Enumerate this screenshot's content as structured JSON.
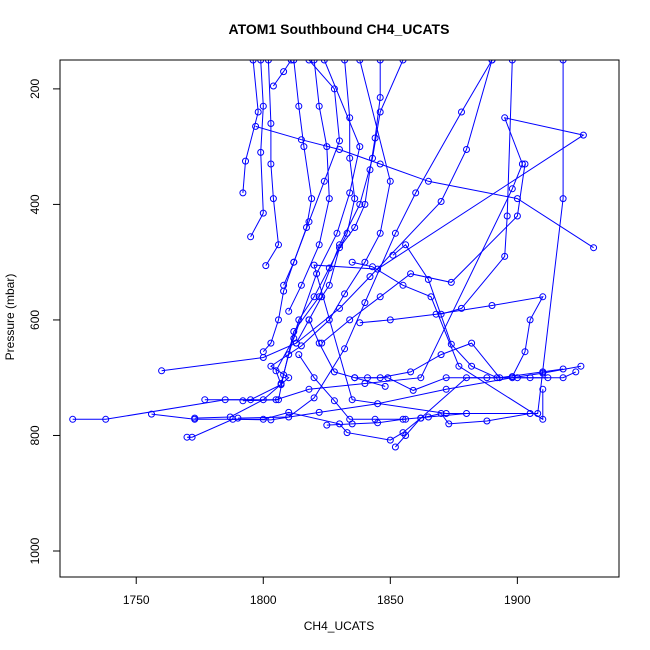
{
  "chart_data": {
    "type": "line",
    "title": "ATOM1 Southbound CH4_UCATS",
    "xlabel": "CH4_UCATS",
    "ylabel": "Pressure (mbar)",
    "xlim": [
      1720,
      1940
    ],
    "ylim": [
      1045,
      150
    ],
    "x_ticks": [
      1750,
      1800,
      1850,
      1900
    ],
    "y_ticks": [
      200,
      400,
      600,
      800,
      1000
    ],
    "grid": false,
    "legend": "none",
    "color": "#0000ff",
    "series": [
      {
        "points": [
          [
            1725,
            772
          ],
          [
            1738,
            772
          ],
          [
            1785,
            738
          ],
          [
            1805,
            738
          ],
          [
            1818,
            720
          ],
          [
            1840,
            710
          ],
          [
            1862,
            700
          ],
          [
            1898,
            373
          ],
          [
            1902,
            330
          ],
          [
            1895,
            250
          ],
          [
            1926,
            280
          ],
          [
            1845,
            512
          ],
          [
            1820,
            505
          ],
          [
            1835,
            738
          ],
          [
            1872,
            762
          ],
          [
            1908,
            762
          ],
          [
            1918,
            390
          ],
          [
            1918,
            150
          ]
        ]
      },
      {
        "points": [
          [
            1756,
            763
          ],
          [
            1773,
            772
          ],
          [
            1800,
            772
          ],
          [
            1810,
            760
          ],
          [
            1830,
            780
          ],
          [
            1833,
            795
          ],
          [
            1850,
            808
          ],
          [
            1855,
            795
          ],
          [
            1862,
            770
          ],
          [
            1880,
            700
          ],
          [
            1900,
            700
          ],
          [
            1918,
            700
          ],
          [
            1923,
            690
          ]
        ]
      },
      {
        "points": [
          [
            1770,
            803
          ],
          [
            1772,
            803
          ],
          [
            1788,
            772
          ],
          [
            1803,
            773
          ],
          [
            1822,
            760
          ],
          [
            1845,
            745
          ],
          [
            1872,
            720
          ],
          [
            1898,
            700
          ],
          [
            1910,
            692
          ],
          [
            1925,
            680
          ]
        ]
      },
      {
        "points": [
          [
            1760,
            688
          ],
          [
            1800,
            665
          ],
          [
            1813,
            640
          ],
          [
            1830,
            580
          ],
          [
            1842,
            525
          ],
          [
            1870,
            395
          ],
          [
            1880,
            305
          ],
          [
            1890,
            150
          ]
        ]
      },
      {
        "points": [
          [
            1773,
            770
          ],
          [
            1787,
            768
          ],
          [
            1800,
            738
          ],
          [
            1810,
            700
          ],
          [
            1803,
            680
          ],
          [
            1815,
            645
          ],
          [
            1826,
            600
          ],
          [
            1832,
            555
          ],
          [
            1840,
            500
          ],
          [
            1846,
            450
          ],
          [
            1850,
            360
          ],
          [
            1838,
            150
          ]
        ]
      },
      {
        "points": [
          [
            1777,
            738
          ],
          [
            1795,
            738
          ],
          [
            1807,
            712
          ],
          [
            1805,
            688
          ],
          [
            1812,
            632
          ],
          [
            1821,
            520
          ],
          [
            1829,
            450
          ],
          [
            1834,
            380
          ],
          [
            1838,
            300
          ],
          [
            1824,
            150
          ]
        ]
      },
      {
        "points": [
          [
            1790,
            770
          ],
          [
            1810,
            768
          ],
          [
            1820,
            735
          ],
          [
            1832,
            650
          ],
          [
            1840,
            570
          ],
          [
            1852,
            450
          ],
          [
            1860,
            380
          ],
          [
            1878,
            240
          ],
          [
            1890,
            150
          ]
        ]
      },
      {
        "points": [
          [
            1792,
            740
          ],
          [
            1806,
            738
          ],
          [
            1808,
            695
          ],
          [
            1812,
            620
          ],
          [
            1822,
            560
          ],
          [
            1830,
            470
          ],
          [
            1838,
            400
          ],
          [
            1843,
            320
          ],
          [
            1846,
            240
          ],
          [
            1855,
            150
          ]
        ]
      },
      {
        "points": [
          [
            1800,
            655
          ],
          [
            1803,
            640
          ],
          [
            1806,
            600
          ],
          [
            1808,
            550
          ],
          [
            1812,
            500
          ],
          [
            1818,
            430
          ],
          [
            1824,
            360
          ],
          [
            1830,
            290
          ],
          [
            1828,
            200
          ],
          [
            1818,
            150
          ]
        ]
      },
      {
        "points": [
          [
            1801,
            506
          ],
          [
            1806,
            470
          ],
          [
            1804,
            390
          ],
          [
            1803,
            330
          ],
          [
            1803,
            260
          ],
          [
            1802,
            150
          ]
        ]
      },
      {
        "points": [
          [
            1797,
            265
          ],
          [
            1815,
            288
          ],
          [
            1830,
            305
          ],
          [
            1846,
            330
          ],
          [
            1865,
            360
          ],
          [
            1900,
            390
          ],
          [
            1930,
            475
          ]
        ]
      },
      {
        "points": [
          [
            1795,
            456
          ],
          [
            1800,
            415
          ],
          [
            1799,
            310
          ],
          [
            1800,
            230
          ],
          [
            1799,
            150
          ]
        ]
      },
      {
        "points": [
          [
            1792,
            380
          ],
          [
            1793,
            325
          ],
          [
            1798,
            240
          ],
          [
            1796,
            150
          ]
        ]
      },
      {
        "points": [
          [
            1808,
            540
          ],
          [
            1812,
            500
          ],
          [
            1817,
            440
          ],
          [
            1819,
            390
          ],
          [
            1816,
            300
          ],
          [
            1814,
            230
          ],
          [
            1812,
            150
          ]
        ]
      },
      {
        "points": [
          [
            1810,
            585
          ],
          [
            1815,
            540
          ],
          [
            1822,
            470
          ],
          [
            1826,
            390
          ],
          [
            1825,
            300
          ],
          [
            1822,
            230
          ],
          [
            1820,
            150
          ]
        ]
      },
      {
        "points": [
          [
            1807,
            710
          ],
          [
            1810,
            660
          ],
          [
            1814,
            600
          ],
          [
            1820,
            560
          ],
          [
            1826,
            510
          ],
          [
            1833,
            450
          ],
          [
            1836,
            390
          ],
          [
            1834,
            320
          ],
          [
            1834,
            250
          ],
          [
            1832,
            150
          ]
        ]
      },
      {
        "points": [
          [
            1813,
            640
          ],
          [
            1818,
            600
          ],
          [
            1823,
            560
          ],
          [
            1826,
            540
          ],
          [
            1830,
            475
          ],
          [
            1836,
            440
          ],
          [
            1840,
            400
          ],
          [
            1842,
            340
          ],
          [
            1844,
            285
          ],
          [
            1846,
            215
          ],
          [
            1846,
            150
          ]
        ]
      },
      {
        "points": [
          [
            1804,
            195
          ],
          [
            1808,
            170
          ],
          [
            1811,
            150
          ]
        ]
      },
      {
        "points": [
          [
            1823,
            640
          ],
          [
            1834,
            600
          ],
          [
            1846,
            560
          ],
          [
            1858,
            520
          ],
          [
            1874,
            535
          ],
          [
            1900,
            420
          ],
          [
            1903,
            330
          ]
        ]
      },
      {
        "points": [
          [
            1870,
            590
          ],
          [
            1878,
            580
          ],
          [
            1895,
            490
          ],
          [
            1896,
            420
          ],
          [
            1898,
            150
          ]
        ]
      },
      {
        "points": [
          [
            1838,
            605
          ],
          [
            1850,
            600
          ],
          [
            1868,
            590
          ],
          [
            1890,
            575
          ],
          [
            1910,
            560
          ],
          [
            1905,
            600
          ],
          [
            1903,
            655
          ],
          [
            1898,
            698
          ]
        ]
      },
      {
        "points": [
          [
            1836,
            700
          ],
          [
            1846,
            700
          ],
          [
            1858,
            690
          ],
          [
            1870,
            660
          ],
          [
            1882,
            640
          ],
          [
            1893,
            700
          ],
          [
            1910,
            690
          ],
          [
            1918,
            685
          ]
        ]
      },
      {
        "points": [
          [
            1841,
            700
          ],
          [
            1849,
            700
          ],
          [
            1859,
            722
          ],
          [
            1872,
            700
          ],
          [
            1888,
            700
          ],
          [
            1905,
            700
          ],
          [
            1912,
            700
          ]
        ]
      },
      {
        "points": [
          [
            1835,
            500
          ],
          [
            1843,
            508
          ],
          [
            1855,
            540
          ],
          [
            1866,
            560
          ],
          [
            1877,
            680
          ],
          [
            1910,
            772
          ],
          [
            1910,
            720
          ]
        ]
      },
      {
        "points": [
          [
            1851,
            488
          ],
          [
            1856,
            470
          ],
          [
            1865,
            530
          ],
          [
            1874,
            642
          ],
          [
            1882,
            680
          ],
          [
            1892,
            700
          ]
        ]
      },
      {
        "points": [
          [
            1852,
            820
          ],
          [
            1856,
            800
          ],
          [
            1862,
            770
          ],
          [
            1870,
            762
          ],
          [
            1873,
            780
          ],
          [
            1888,
            775
          ],
          [
            1905,
            762
          ]
        ]
      },
      {
        "points": [
          [
            1825,
            782
          ],
          [
            1835,
            780
          ],
          [
            1845,
            778
          ],
          [
            1855,
            772
          ],
          [
            1865,
            768
          ],
          [
            1880,
            762
          ]
        ]
      },
      {
        "points": [
          [
            1818,
            600
          ],
          [
            1822,
            640
          ],
          [
            1828,
            690
          ],
          [
            1836,
            700
          ],
          [
            1848,
            715
          ]
        ]
      },
      {
        "points": [
          [
            1814,
            660
          ],
          [
            1820,
            700
          ],
          [
            1828,
            740
          ],
          [
            1834,
            772
          ],
          [
            1844,
            772
          ],
          [
            1856,
            772
          ]
        ]
      }
    ]
  }
}
